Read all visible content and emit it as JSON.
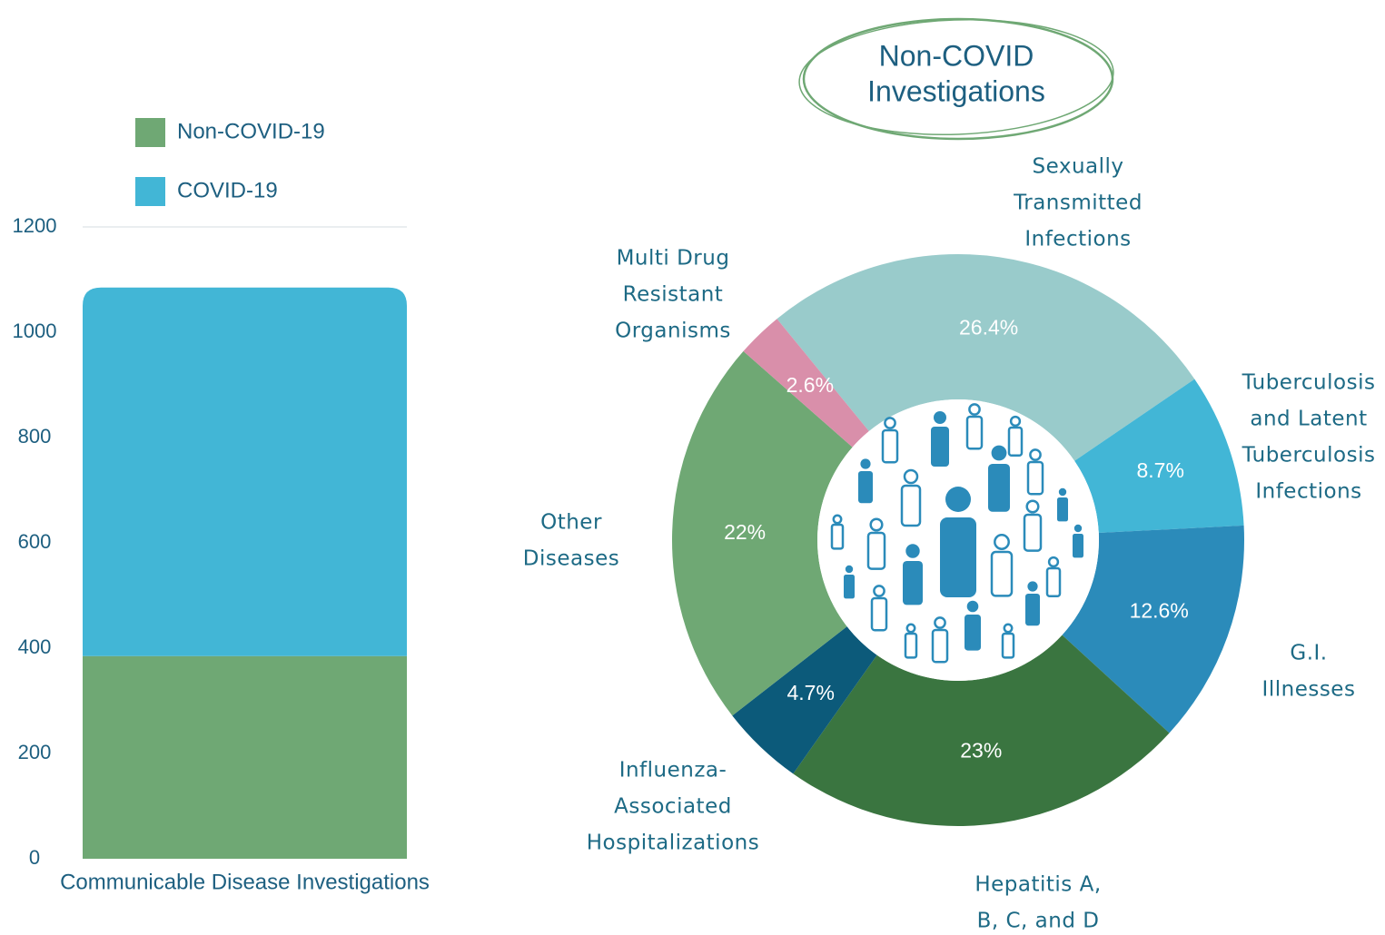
{
  "chart_data": [
    {
      "type": "bar",
      "stacked": true,
      "categories": [
        "Communicable Disease Investigations"
      ],
      "series": [
        {
          "name": "Non-COVID-19",
          "color": "#6fa874",
          "values": [
            385
          ]
        },
        {
          "name": "COVID-19",
          "color": "#42b6d6",
          "values": [
            700
          ]
        }
      ],
      "ylim": [
        0,
        1200
      ],
      "yticks": [
        0,
        200,
        400,
        600,
        800,
        1000,
        1200
      ],
      "legend": "top-left"
    },
    {
      "type": "donut",
      "title": [
        "Non-COVID",
        "Investigations"
      ],
      "categories": [
        [
          "Sexually",
          "Transmitted",
          "Infections"
        ],
        [
          "Tuberculosis",
          "and Latent",
          "Tuberculosis",
          "Infections"
        ],
        [
          "G.I.",
          "Illnesses"
        ],
        [
          "Hepatitis A,",
          "B, C, and D"
        ],
        [
          "Influenza-",
          "Associated",
          "Hospitalizations"
        ],
        [
          "Other",
          "Diseases"
        ],
        [
          "Multi Drug",
          "Resistant",
          "Organisms"
        ]
      ],
      "values": [
        26.4,
        8.7,
        12.6,
        23,
        4.7,
        22,
        2.6
      ],
      "value_labels": [
        "26.4%",
        "8.7%",
        "12.6%",
        "23%",
        "4.7%",
        "22%",
        "2.6%"
      ],
      "colors": [
        "#99cbcb",
        "#42b6d6",
        "#2b8bba",
        "#3a7540",
        "#0c5a7a",
        "#6fa874",
        "#d98faa"
      ]
    }
  ]
}
